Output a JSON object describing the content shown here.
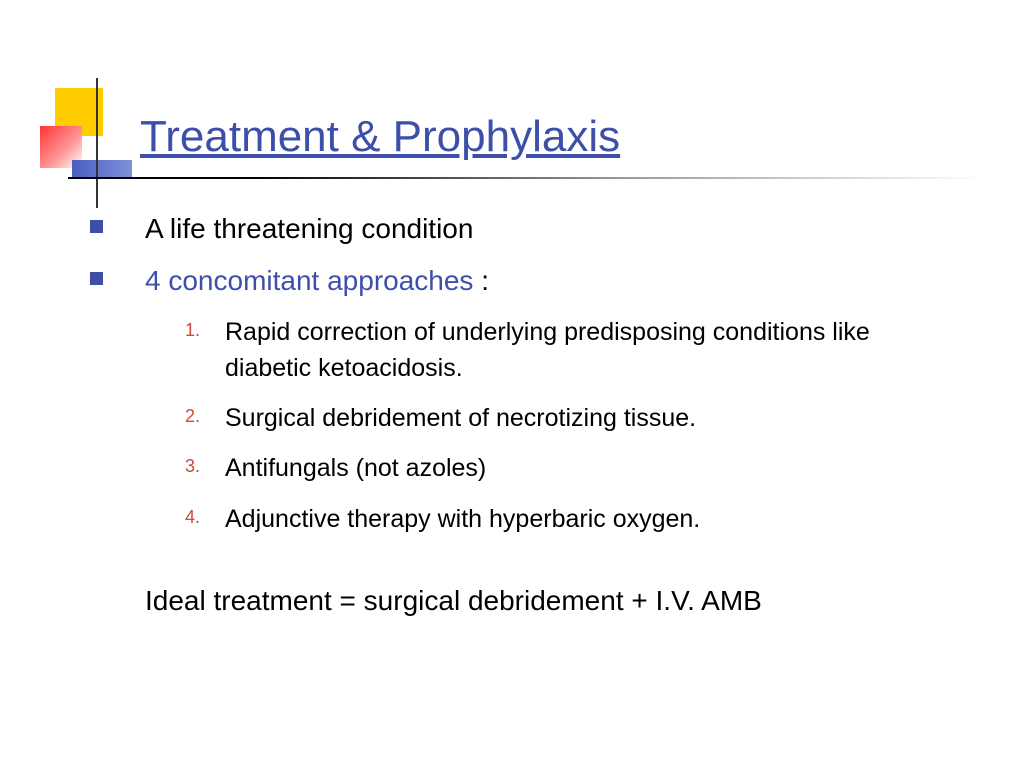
{
  "slide": {
    "title": "Treatment & Prophylaxis",
    "title_color": "#3d4fa8",
    "title_fontsize": 44,
    "bullet_color": "#3d4fa8",
    "number_color": "#c94a3b",
    "body_color": "#000000",
    "background_color": "#ffffff",
    "decoration": {
      "yellow": "#ffcc00",
      "red": "#ff3333",
      "blue": "#4a5fc1"
    },
    "bullets": [
      {
        "text": "A life threatening condition",
        "color": "#000000"
      },
      {
        "text_blue": "4 concomitant approaches",
        "text_suffix": " :",
        "color": "#3d4fa8"
      }
    ],
    "numbered": [
      {
        "n": "1.",
        "text": "Rapid correction of underlying predisposing conditions like diabetic ketoacidosis."
      },
      {
        "n": "2.",
        "text": "Surgical debridement of necrotizing tissue."
      },
      {
        "n": "3.",
        "text": "Antifungals (not azoles)"
      },
      {
        "n": "4.",
        "text": "Adjunctive therapy with hyperbaric oxygen."
      }
    ],
    "summary": "Ideal treatment = surgical debridement + I.V. AMB"
  }
}
